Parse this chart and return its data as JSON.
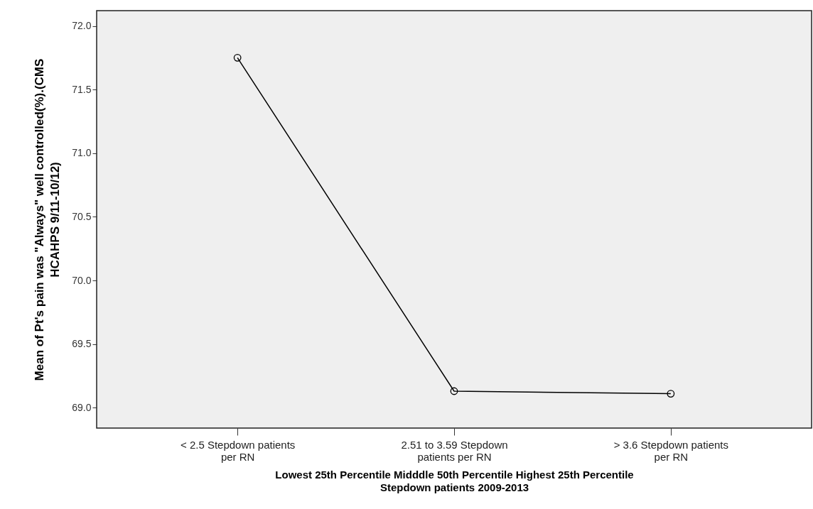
{
  "chart_data": {
    "type": "line",
    "xlabel": "Lowest 25th Percentile    Midddle 50th Percentile  Highest 25th Percentile\nStepdown patients 2009-2013",
    "ylabel": "Mean of Pt's pain was \"Always\" well controlled(%).(CMS HCAHPS 9/11-10/12)",
    "categories": [
      "< 2.5 Stepdown patients per RN",
      "2.51 to 3.59 Stepdown patients per RN",
      "> 3.6 Stepdown patients per RN"
    ],
    "values": [
      71.75,
      69.13,
      69.11
    ],
    "color": "#000000",
    "marker": "circle",
    "ylim": [
      68.84,
      72.12
    ],
    "yticks": [
      {
        "value": 69,
        "label": "69.0"
      },
      {
        "value": 69.5,
        "label": "69.5"
      },
      {
        "value": 70,
        "label": "70.0"
      },
      {
        "value": 70.5,
        "label": "70.5"
      },
      {
        "value": 71,
        "label": "71.0"
      },
      {
        "value": 71.5,
        "label": "71.5"
      },
      {
        "value": 72,
        "label": "72.0"
      }
    ]
  }
}
